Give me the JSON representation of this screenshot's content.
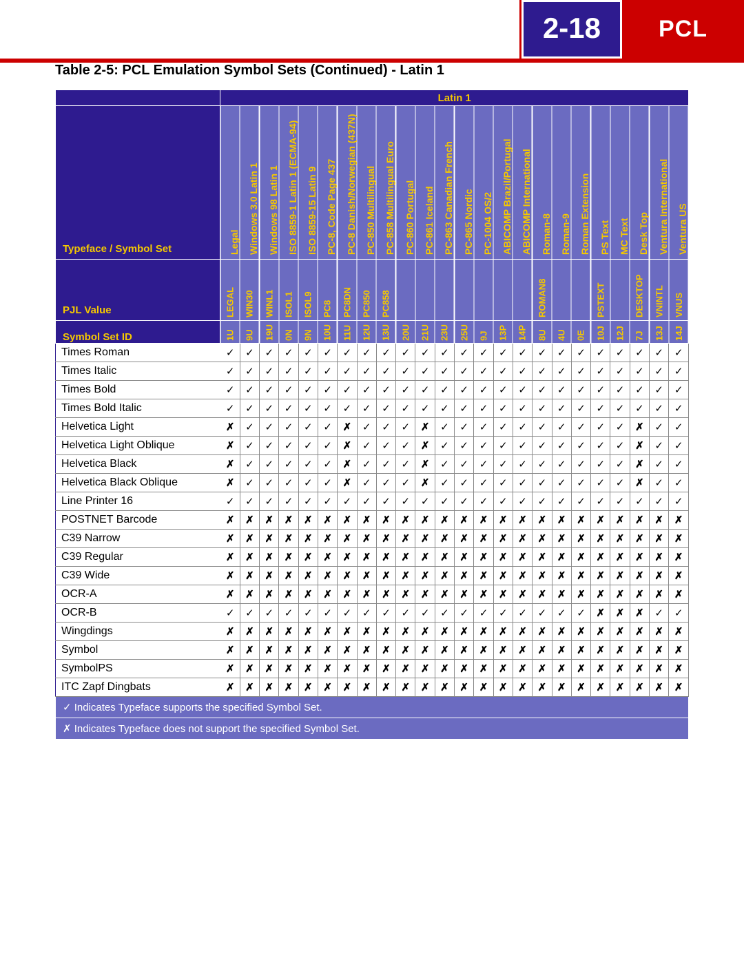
{
  "header": {
    "page_number": "2-18",
    "section": "PCL"
  },
  "table_title": "Table 2-5:  PCL Emulation Symbol Sets (Continued) - Latin 1",
  "group_label": "Latin 1",
  "row_headers": {
    "typeface": "Typeface / Symbol Set",
    "pjl": "PJL Value",
    "symid": "Symbol Set ID"
  },
  "columns": [
    {
      "name": "Legal",
      "pjl": "LEGAL",
      "id": "1U"
    },
    {
      "name": "Windows 3.0 Latin 1",
      "pjl": "WIN30",
      "id": "9U"
    },
    {
      "name": "Windows 98 Latin 1",
      "pjl": "WINL1",
      "id": "19U"
    },
    {
      "name": "ISO 8859-1 Latin 1 (ECMA-94)",
      "pjl": "ISOL1",
      "id": "0N"
    },
    {
      "name": "ISO 8859-15 Latin 9",
      "pjl": "ISOL9",
      "id": "9N"
    },
    {
      "name": "PC-8, Code Page 437",
      "pjl": "PC8",
      "id": "10U"
    },
    {
      "name": "PC-8 Danish/Norwegian (437N)",
      "pjl": "PC8DN",
      "id": "11U"
    },
    {
      "name": "PC-850 Multilingual",
      "pjl": "PC850",
      "id": "12U"
    },
    {
      "name": "PC-858 Multilingual Euro",
      "pjl": "PC858",
      "id": "13U"
    },
    {
      "name": "PC-860 Portugal",
      "pjl": "",
      "id": "20U"
    },
    {
      "name": "PC-861 Iceland",
      "pjl": "",
      "id": "21U"
    },
    {
      "name": "PC-863 Canadian French",
      "pjl": "",
      "id": "23U"
    },
    {
      "name": "PC-865 Nordic",
      "pjl": "",
      "id": "25U"
    },
    {
      "name": "PC-1004 OS/2",
      "pjl": "",
      "id": "9J"
    },
    {
      "name": "ABICOMP Brazil/Portugal",
      "pjl": "",
      "id": "13P"
    },
    {
      "name": "ABICOMP International",
      "pjl": "",
      "id": "14P"
    },
    {
      "name": "Roman-8",
      "pjl": "ROMAN8",
      "id": "8U"
    },
    {
      "name": "Roman-9",
      "pjl": "",
      "id": "4U"
    },
    {
      "name": "Roman Extension",
      "pjl": "",
      "id": "0E"
    },
    {
      "name": "PS Text",
      "pjl": "PSTEXT",
      "id": "10J"
    },
    {
      "name": "MC Text",
      "pjl": "",
      "id": "12J"
    },
    {
      "name": "Desk Top",
      "pjl": "DESKTOP",
      "id": "7J"
    },
    {
      "name": "Ventura International",
      "pjl": "VNINTL",
      "id": "13J"
    },
    {
      "name": "Ventura US",
      "pjl": "VNUS",
      "id": "14J"
    }
  ],
  "rows": [
    {
      "name": "Times Roman",
      "v": [
        1,
        1,
        1,
        1,
        1,
        1,
        1,
        1,
        1,
        1,
        1,
        1,
        1,
        1,
        1,
        1,
        1,
        1,
        1,
        1,
        1,
        1,
        1,
        1
      ]
    },
    {
      "name": "Times Italic",
      "v": [
        1,
        1,
        1,
        1,
        1,
        1,
        1,
        1,
        1,
        1,
        1,
        1,
        1,
        1,
        1,
        1,
        1,
        1,
        1,
        1,
        1,
        1,
        1,
        1
      ]
    },
    {
      "name": "Times Bold",
      "v": [
        1,
        1,
        1,
        1,
        1,
        1,
        1,
        1,
        1,
        1,
        1,
        1,
        1,
        1,
        1,
        1,
        1,
        1,
        1,
        1,
        1,
        1,
        1,
        1
      ]
    },
    {
      "name": "Times Bold Italic",
      "v": [
        1,
        1,
        1,
        1,
        1,
        1,
        1,
        1,
        1,
        1,
        1,
        1,
        1,
        1,
        1,
        1,
        1,
        1,
        1,
        1,
        1,
        1,
        1,
        1
      ]
    },
    {
      "name": "Helvetica Light",
      "v": [
        0,
        1,
        1,
        1,
        1,
        1,
        0,
        1,
        1,
        1,
        0,
        1,
        1,
        1,
        1,
        1,
        1,
        1,
        1,
        1,
        1,
        0,
        1,
        1
      ]
    },
    {
      "name": "Helvetica Light Oblique",
      "v": [
        0,
        1,
        1,
        1,
        1,
        1,
        0,
        1,
        1,
        1,
        0,
        1,
        1,
        1,
        1,
        1,
        1,
        1,
        1,
        1,
        1,
        0,
        1,
        1
      ]
    },
    {
      "name": "Helvetica Black",
      "v": [
        0,
        1,
        1,
        1,
        1,
        1,
        0,
        1,
        1,
        1,
        0,
        1,
        1,
        1,
        1,
        1,
        1,
        1,
        1,
        1,
        1,
        0,
        1,
        1
      ]
    },
    {
      "name": "Helvetica Black Oblique",
      "v": [
        0,
        1,
        1,
        1,
        1,
        1,
        0,
        1,
        1,
        1,
        0,
        1,
        1,
        1,
        1,
        1,
        1,
        1,
        1,
        1,
        1,
        0,
        1,
        1
      ]
    },
    {
      "name": "Line Printer 16",
      "v": [
        1,
        1,
        1,
        1,
        1,
        1,
        1,
        1,
        1,
        1,
        1,
        1,
        1,
        1,
        1,
        1,
        1,
        1,
        1,
        1,
        1,
        1,
        1,
        1
      ]
    },
    {
      "name": "POSTNET Barcode",
      "v": [
        0,
        0,
        0,
        0,
        0,
        0,
        0,
        0,
        0,
        0,
        0,
        0,
        0,
        0,
        0,
        0,
        0,
        0,
        0,
        0,
        0,
        0,
        0,
        0
      ]
    },
    {
      "name": "C39 Narrow",
      "v": [
        0,
        0,
        0,
        0,
        0,
        0,
        0,
        0,
        0,
        0,
        0,
        0,
        0,
        0,
        0,
        0,
        0,
        0,
        0,
        0,
        0,
        0,
        0,
        0
      ]
    },
    {
      "name": "C39 Regular",
      "v": [
        0,
        0,
        0,
        0,
        0,
        0,
        0,
        0,
        0,
        0,
        0,
        0,
        0,
        0,
        0,
        0,
        0,
        0,
        0,
        0,
        0,
        0,
        0,
        0
      ]
    },
    {
      "name": "C39 Wide",
      "v": [
        0,
        0,
        0,
        0,
        0,
        0,
        0,
        0,
        0,
        0,
        0,
        0,
        0,
        0,
        0,
        0,
        0,
        0,
        0,
        0,
        0,
        0,
        0,
        0
      ]
    },
    {
      "name": "OCR-A",
      "v": [
        0,
        0,
        0,
        0,
        0,
        0,
        0,
        0,
        0,
        0,
        0,
        0,
        0,
        0,
        0,
        0,
        0,
        0,
        0,
        0,
        0,
        0,
        0,
        0
      ]
    },
    {
      "name": "OCR-B",
      "v": [
        1,
        1,
        1,
        1,
        1,
        1,
        1,
        1,
        1,
        1,
        1,
        1,
        1,
        1,
        1,
        1,
        1,
        1,
        1,
        0,
        0,
        0,
        1,
        1
      ]
    },
    {
      "name": "Wingdings",
      "v": [
        0,
        0,
        0,
        0,
        0,
        0,
        0,
        0,
        0,
        0,
        0,
        0,
        0,
        0,
        0,
        0,
        0,
        0,
        0,
        0,
        0,
        0,
        0,
        0
      ]
    },
    {
      "name": "Symbol",
      "v": [
        0,
        0,
        0,
        0,
        0,
        0,
        0,
        0,
        0,
        0,
        0,
        0,
        0,
        0,
        0,
        0,
        0,
        0,
        0,
        0,
        0,
        0,
        0,
        0
      ]
    },
    {
      "name": "SymbolPS",
      "v": [
        0,
        0,
        0,
        0,
        0,
        0,
        0,
        0,
        0,
        0,
        0,
        0,
        0,
        0,
        0,
        0,
        0,
        0,
        0,
        0,
        0,
        0,
        0,
        0
      ]
    },
    {
      "name": "ITC Zapf Dingbats",
      "v": [
        0,
        0,
        0,
        0,
        0,
        0,
        0,
        0,
        0,
        0,
        0,
        0,
        0,
        0,
        0,
        0,
        0,
        0,
        0,
        0,
        0,
        0,
        0,
        0
      ]
    }
  ],
  "marks": {
    "yes": "✓",
    "no": "✗"
  },
  "legend": {
    "yes": "✓ Indicates Typeface supports the specified Symbol Set.",
    "no": "✗ Indicates Typeface does not support the specified Symbol Set."
  },
  "colors": {
    "header_bg": "#2e1b8f",
    "sub_bg": "#6b6bc1",
    "accent_text": "#f5c800",
    "section_bg": "#c00"
  }
}
